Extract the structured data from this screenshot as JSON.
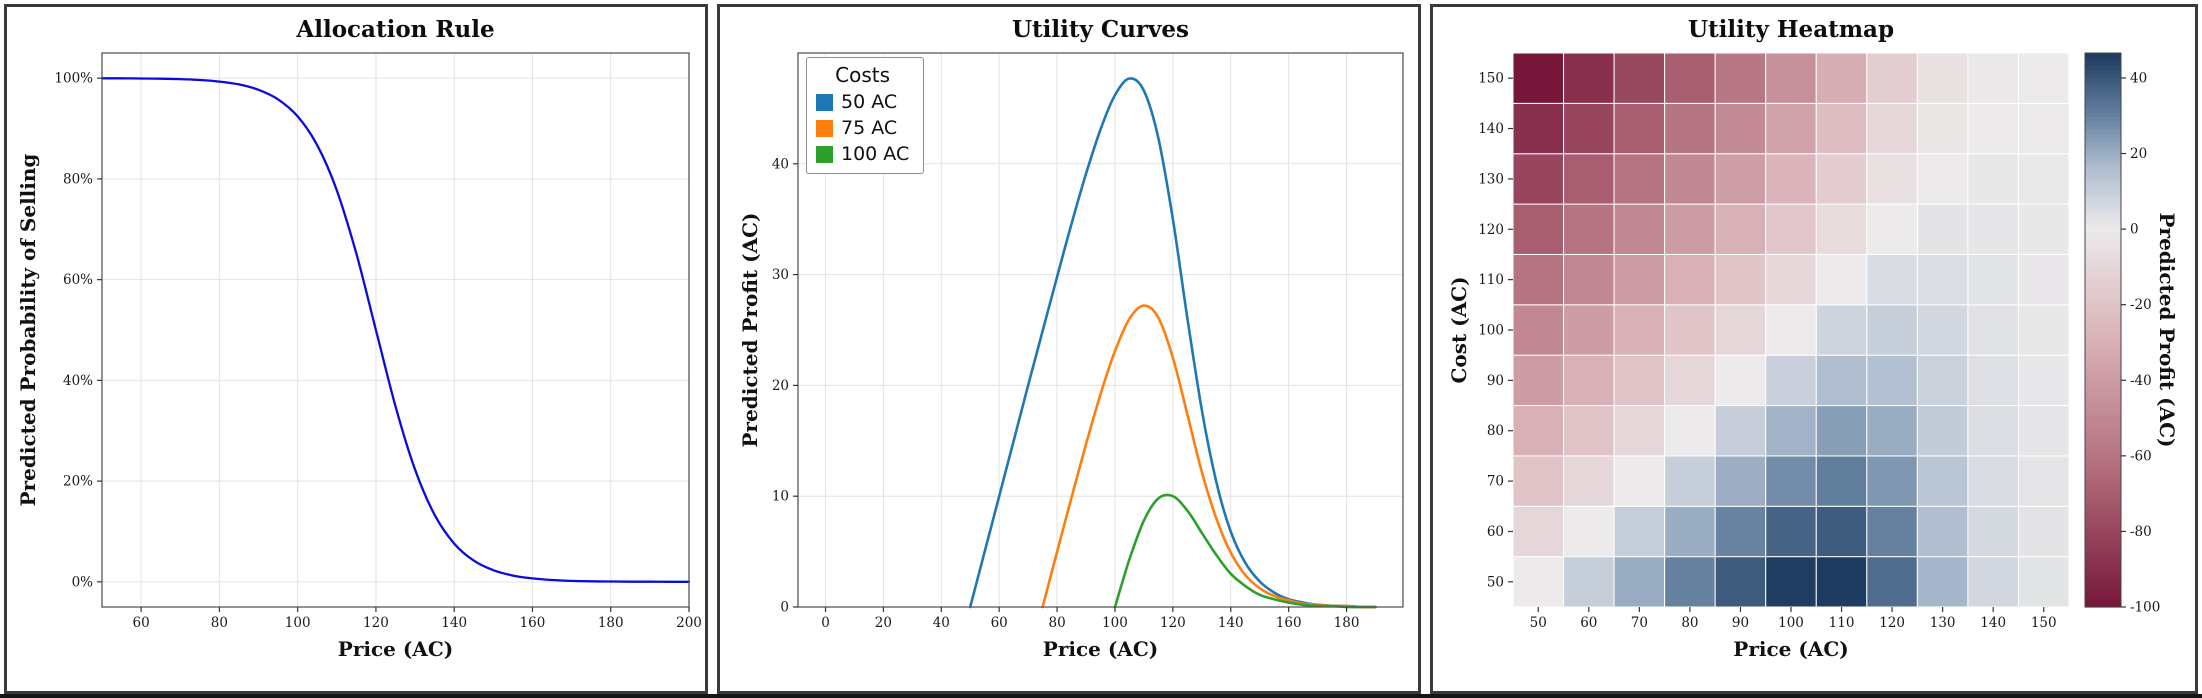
{
  "chart_data": [
    {
      "type": "line",
      "title": "Allocation Rule",
      "xlabel": "Price (AC)",
      "ylabel": "Predicted Probability of Selling",
      "line_color": "#0b0be0",
      "grid": true,
      "xlim": [
        50,
        200
      ],
      "ylim": [
        -5,
        105
      ],
      "xticks": [
        60,
        80,
        100,
        120,
        140,
        160,
        180,
        200
      ],
      "yticks": [
        0,
        20,
        40,
        60,
        80,
        100
      ],
      "ytick_suffix": "%",
      "x": [
        50,
        55,
        60,
        65,
        70,
        75,
        80,
        85,
        90,
        95,
        100,
        105,
        110,
        115,
        120,
        125,
        130,
        135,
        140,
        145,
        150,
        155,
        160,
        165,
        170,
        175,
        180,
        185,
        190,
        195,
        200
      ],
      "y": [
        99.98,
        99.97,
        99.94,
        99.9,
        99.81,
        99.64,
        99.33,
        98.76,
        97.7,
        95.79,
        92.41,
        86.7,
        77.73,
        65.14,
        50,
        34.86,
        22.27,
        13.3,
        7.59,
        4.21,
        2.3,
        1.24,
        0.67,
        0.36,
        0.19,
        0.1,
        0.06,
        0.03,
        0.02,
        0.01,
        0
      ]
    },
    {
      "type": "line",
      "title": "Utility Curves",
      "xlabel": "Price (AC)",
      "ylabel": "Predicted Profit (AC)",
      "legend_title": "Costs",
      "legend_position": "upper-left",
      "grid": true,
      "xlim": [
        -9.5,
        199.5
      ],
      "ylim": [
        0,
        50
      ],
      "xticks": [
        0,
        20,
        40,
        60,
        80,
        100,
        120,
        140,
        160,
        180
      ],
      "yticks": [
        0,
        10,
        20,
        30,
        40
      ],
      "series": [
        {
          "name": "50 AC",
          "color": "#1f77b4",
          "x": [
            50,
            55,
            60,
            65,
            70,
            75,
            80,
            85,
            90,
            95,
            100,
            105,
            110,
            115,
            120,
            125,
            130,
            135,
            140,
            145,
            150,
            155,
            160,
            165,
            170,
            175,
            180,
            185,
            190
          ],
          "y": [
            0,
            5,
            10,
            15,
            20,
            24.9,
            29.8,
            34.6,
            39.1,
            43.1,
            46.2,
            47.7,
            46.6,
            42.3,
            35,
            26.1,
            17.8,
            11.3,
            6.8,
            4,
            2.3,
            1.3,
            0.7,
            0.4,
            0.2,
            0.1,
            0.1,
            0,
            0
          ]
        },
        {
          "name": "75 AC",
          "color": "#ff7f0e",
          "x": [
            75,
            80,
            85,
            90,
            95,
            100,
            105,
            110,
            115,
            120,
            125,
            130,
            135,
            140,
            145,
            150,
            155,
            160,
            165,
            170,
            175,
            180,
            185,
            190
          ],
          "y": [
            0,
            5,
            9.9,
            14.7,
            19.2,
            23.1,
            26,
            27.2,
            26.1,
            22.5,
            17.4,
            12.2,
            8,
            4.9,
            2.9,
            1.7,
            1,
            0.6,
            0.3,
            0.2,
            0.1,
            0.1,
            0,
            0
          ]
        },
        {
          "name": "100 AC",
          "color": "#2ca02c",
          "x": [
            100,
            105,
            110,
            115,
            120,
            125,
            130,
            135,
            140,
            145,
            150,
            155,
            160,
            165,
            170,
            175,
            180,
            185,
            190
          ],
          "y": [
            0,
            4.3,
            7.8,
            9.8,
            10,
            8.7,
            6.7,
            4.7,
            3,
            1.9,
            1.1,
            0.7,
            0.4,
            0.2,
            0.1,
            0.1,
            0,
            0,
            0
          ]
        }
      ]
    },
    {
      "type": "heatmap",
      "title": "Utility Heatmap",
      "xlabel": "Price (AC)",
      "ylabel": "Cost (AC)",
      "colorbar_label": "Predicted Profit (AC)",
      "prices": [
        50,
        60,
        70,
        80,
        90,
        100,
        110,
        120,
        130,
        140,
        150
      ],
      "costs": [
        50,
        60,
        70,
        80,
        90,
        100,
        110,
        120,
        130,
        140,
        150
      ],
      "values": [
        [
          0.0,
          10.0,
          20.0,
          29.8,
          39.1,
          46.2,
          46.6,
          35.0,
          17.8,
          6.8,
          2.3
        ],
        [
          -10.0,
          0.0,
          10.0,
          19.9,
          29.3,
          37.0,
          38.9,
          30.0,
          15.6,
          6.1,
          2.1
        ],
        [
          -20.0,
          -10.0,
          0.0,
          9.9,
          19.5,
          27.7,
          31.1,
          25.0,
          13.4,
          5.3,
          1.8
        ],
        [
          -30.0,
          -20.0,
          -10.0,
          0.0,
          9.8,
          18.5,
          23.3,
          20.0,
          11.1,
          4.6,
          1.6
        ],
        [
          -40.0,
          -30.0,
          -20.0,
          -9.9,
          0.0,
          9.2,
          15.5,
          15.0,
          8.9,
          3.8,
          1.4
        ],
        [
          -50.0,
          -40.0,
          -29.9,
          -19.9,
          -9.8,
          0.0,
          7.8,
          10.0,
          6.7,
          3.0,
          1.1
        ],
        [
          -60.0,
          -50.0,
          -39.9,
          -29.8,
          -19.5,
          -9.2,
          0.0,
          5.0,
          4.5,
          2.3,
          0.9
        ],
        [
          -70.0,
          -60.0,
          -49.9,
          -39.7,
          -29.3,
          -18.5,
          -7.8,
          0.0,
          2.2,
          1.5,
          0.7
        ],
        [
          -80.0,
          -70.0,
          -59.9,
          -49.7,
          -39.1,
          -27.7,
          -15.5,
          -5.0,
          0.0,
          0.8,
          0.5
        ],
        [
          -90.0,
          -80.0,
          -69.9,
          -59.6,
          -48.9,
          -37.0,
          -23.3,
          -10.0,
          -2.2,
          0.0,
          0.2
        ],
        [
          -100.0,
          -90.0,
          -79.8,
          -69.5,
          -58.6,
          -46.2,
          -31.1,
          -15.0,
          -4.5,
          -0.8,
          0.0
        ]
      ],
      "vmin": -100,
      "vmax": 46.6,
      "colorbar_ticks": [
        40,
        20,
        0,
        -20,
        -40,
        -60,
        -80,
        -100
      ],
      "colormap": {
        "pos_stops": [
          [
            0,
            "#eceaea"
          ],
          [
            0.35,
            "#aebccf"
          ],
          [
            0.65,
            "#64809f"
          ],
          [
            1,
            "#1d3a5f"
          ]
        ],
        "neg_stops": [
          [
            0,
            "#eceaea"
          ],
          [
            0.3,
            "#d8b0b6"
          ],
          [
            0.65,
            "#b06a79"
          ],
          [
            1,
            "#76173a"
          ]
        ]
      }
    }
  ]
}
